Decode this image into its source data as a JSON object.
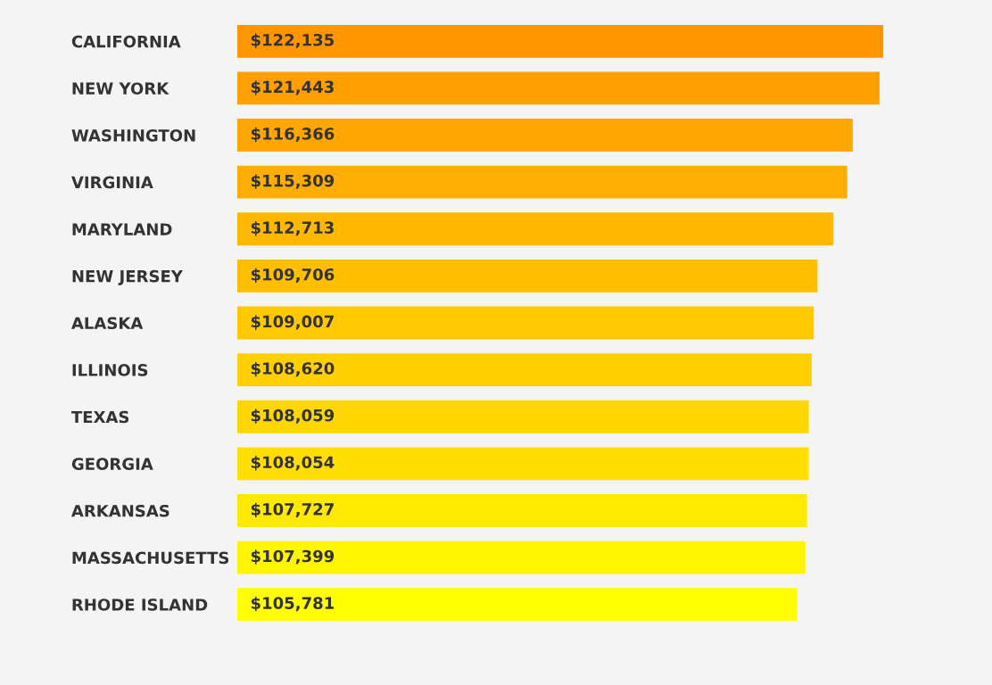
{
  "chart_data": {
    "type": "bar",
    "orientation": "horizontal",
    "categories": [
      "CALIFORNIA",
      "NEW YORK",
      "WASHINGTON",
      "VIRGINIA",
      "MARYLAND",
      "NEW JERSEY",
      "ALASKA",
      "ILLINOIS",
      "TEXAS",
      "GEORGIA",
      "ARKANSAS",
      "MASSACHUSETTS",
      "RHODE ISLAND"
    ],
    "values": [
      122135,
      121443,
      116366,
      115309,
      112713,
      109706,
      109007,
      108620,
      108059,
      108054,
      107727,
      107399,
      105781
    ],
    "value_labels": [
      "$122,135",
      "$121,443",
      "$116,366",
      "$115,309",
      "$112,713",
      "$109,706",
      "$109,007",
      "$108,620",
      "$108,059",
      "$108,054",
      "$107,727",
      "$107,399",
      "$105,781"
    ],
    "colors": [
      "#ff9600",
      "#ff9f00",
      "#ffa600",
      "#ffad00",
      "#ffb800",
      "#ffbe00",
      "#ffc800",
      "#ffcf00",
      "#ffd700",
      "#ffde00",
      "#ffe900",
      "#fff500",
      "#ffff00"
    ],
    "tick_labels": "y",
    "grid": false,
    "legend": false
  }
}
